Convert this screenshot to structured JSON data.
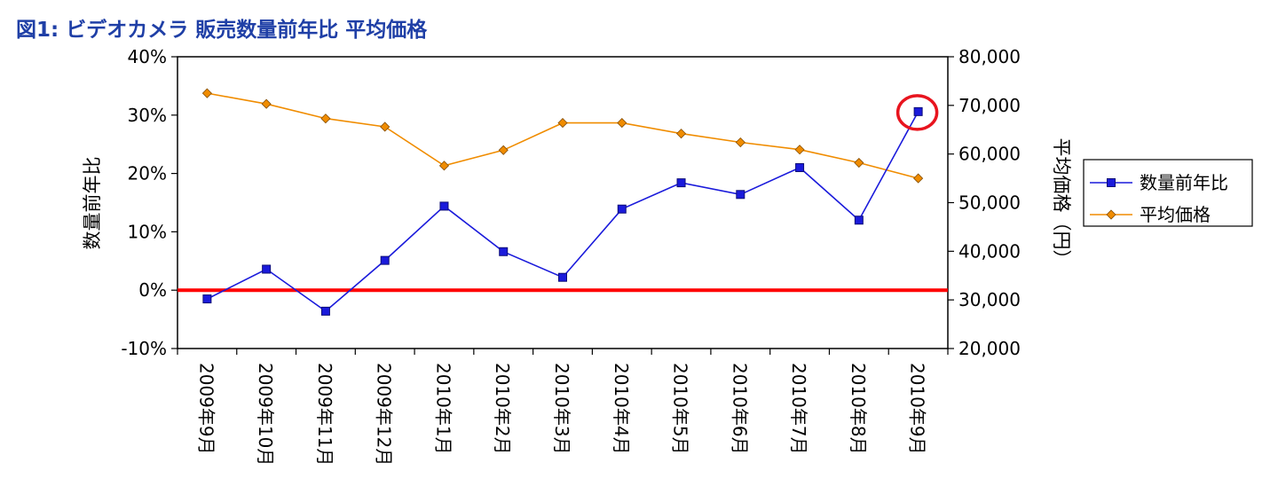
{
  "chart_data": {
    "type": "line",
    "title": "図1: ビデオカメラ 販売数量前年比 平均価格",
    "categories": [
      "2009年9月",
      "2009年10月",
      "2009年11月",
      "2009年12月",
      "2010年1月",
      "2010年2月",
      "2010年3月",
      "2010年4月",
      "2010年5月",
      "2010年6月",
      "2010年7月",
      "2010年8月",
      "2010年9月"
    ],
    "y_left": {
      "label": "数量前年比",
      "ylim": [
        -10,
        40
      ],
      "ticks": [
        40,
        30,
        20,
        10,
        0,
        -10
      ],
      "tick_labels": [
        "40%",
        "30%",
        "20%",
        "10%",
        "0%",
        "-10%"
      ],
      "unit": "%"
    },
    "y_right": {
      "label": "平均価格（円）",
      "ylim": [
        20000,
        80000
      ],
      "ticks": [
        80000,
        70000,
        60000,
        50000,
        40000,
        30000,
        20000
      ],
      "tick_labels": [
        "80,000",
        "70,000",
        "60,000",
        "50,000",
        "40,000",
        "30,000",
        "20,000"
      ]
    },
    "series": [
      {
        "name": "数量前年比",
        "axis": "left",
        "color": "#1a1adb",
        "marker": "square",
        "values": [
          -1.5,
          3.6,
          -3.6,
          5.1,
          14.4,
          6.6,
          2.2,
          13.9,
          18.4,
          16.4,
          21.0,
          12.0,
          30.6
        ]
      },
      {
        "name": "平均価格",
        "axis": "right",
        "color": "#f08c00",
        "marker": "diamond",
        "values": [
          72500,
          70300,
          67300,
          65600,
          57600,
          60800,
          66400,
          66400,
          64200,
          62400,
          60900,
          58200,
          55000
        ]
      }
    ],
    "reference_line": {
      "axis": "left",
      "value": 0,
      "color": "#ff0000"
    },
    "highlight": {
      "series": "数量前年比",
      "category": "2010年9月",
      "color": "#e8141e"
    },
    "legend_position": "right"
  }
}
